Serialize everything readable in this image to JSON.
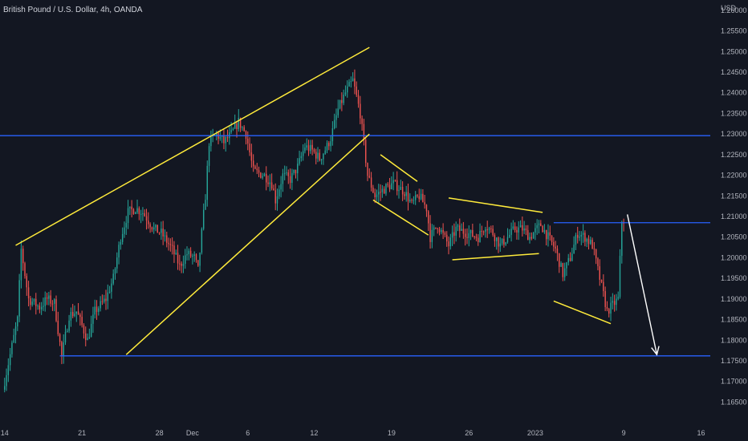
{
  "chart_data": {
    "type": "candlestick",
    "title": "British Pound / U.S. Dollar, 4h, OANDA",
    "currency": "USD",
    "colors": {
      "background": "#131722",
      "up": "#26a69a",
      "down": "#ef5350",
      "horizontal_lines": "#2962ff",
      "trendlines": "#ffeb3b",
      "arrow": "#ffffff",
      "tick_text": "#b2b5be"
    },
    "ylim": [
      1.161,
      1.2625
    ],
    "xlim": [
      "2022-11-13T14:00",
      "2023-01-16T20:00"
    ],
    "y_ticks": [
      "1.26000",
      "1.25500",
      "1.25000",
      "1.24500",
      "1.24000",
      "1.23500",
      "1.23000",
      "1.22500",
      "1.22000",
      "1.21500",
      "1.21000",
      "1.20500",
      "1.20000",
      "1.19500",
      "1.19000",
      "1.18500",
      "1.18000",
      "1.17500",
      "1.17000",
      "1.16500"
    ],
    "x_ticks": [
      {
        "label": "14",
        "date": "2022-11-14"
      },
      {
        "label": "21",
        "date": "2022-11-21"
      },
      {
        "label": "28",
        "date": "2022-11-28"
      },
      {
        "label": "Dec",
        "date": "2022-12-01"
      },
      {
        "label": "6",
        "date": "2022-12-06"
      },
      {
        "label": "12",
        "date": "2022-12-12"
      },
      {
        "label": "19",
        "date": "2022-12-19"
      },
      {
        "label": "26",
        "date": "2022-12-26"
      },
      {
        "label": "2023",
        "date": "2023-01-01"
      },
      {
        "label": "9",
        "date": "2023-01-09"
      },
      {
        "label": "16",
        "date": "2023-01-16"
      }
    ],
    "price_path": [
      [
        "2022-11-14T00:00",
        1.168
      ],
      [
        "2022-11-15T08:00",
        1.185
      ],
      [
        "2022-11-15T16:00",
        1.202
      ],
      [
        "2022-11-16T08:00",
        1.19
      ],
      [
        "2022-11-17T08:00",
        1.188
      ],
      [
        "2022-11-18T00:00",
        1.19
      ],
      [
        "2022-11-18T16:00",
        1.189
      ],
      [
        "2022-11-19T08:00",
        1.176
      ],
      [
        "2022-11-20T00:00",
        1.186
      ],
      [
        "2022-11-20T16:00",
        1.187
      ],
      [
        "2022-11-21T16:00",
        1.18
      ],
      [
        "2022-11-22T08:00",
        1.187
      ],
      [
        "2022-11-23T08:00",
        1.19
      ],
      [
        "2022-11-24T00:00",
        1.195
      ],
      [
        "2022-11-24T16:00",
        1.205
      ],
      [
        "2022-11-25T08:00",
        1.211
      ],
      [
        "2022-11-26T00:00",
        1.212
      ],
      [
        "2022-11-26T16:00",
        1.211
      ],
      [
        "2022-11-27T16:00",
        1.207
      ],
      [
        "2022-11-28T08:00",
        1.206
      ],
      [
        "2022-11-29T08:00",
        1.202
      ],
      [
        "2022-11-30T00:00",
        1.198
      ],
      [
        "2022-11-30T16:00",
        1.201
      ],
      [
        "2022-12-01T08:00",
        1.2
      ],
      [
        "2022-12-01T16:00",
        1.197
      ],
      [
        "2022-12-02T08:00",
        1.215
      ],
      [
        "2022-12-02T16:00",
        1.228
      ],
      [
        "2022-12-03T08:00",
        1.23
      ],
      [
        "2022-12-04T00:00",
        1.228
      ],
      [
        "2022-12-04T16:00",
        1.23
      ],
      [
        "2022-12-05T08:00",
        1.233
      ],
      [
        "2022-12-06T00:00",
        1.23
      ],
      [
        "2022-12-06T16:00",
        1.221
      ],
      [
        "2022-12-07T16:00",
        1.22
      ],
      [
        "2022-12-08T08:00",
        1.218
      ],
      [
        "2022-12-08T16:00",
        1.214
      ],
      [
        "2022-12-09T08:00",
        1.22
      ],
      [
        "2022-12-10T00:00",
        1.219
      ],
      [
        "2022-12-10T16:00",
        1.222
      ],
      [
        "2022-12-11T08:00",
        1.227
      ],
      [
        "2022-12-12T00:00",
        1.226
      ],
      [
        "2022-12-12T16:00",
        1.224
      ],
      [
        "2022-12-13T08:00",
        1.227
      ],
      [
        "2022-12-13T16:00",
        1.229
      ],
      [
        "2022-12-14T08:00",
        1.236
      ],
      [
        "2022-12-15T00:00",
        1.24
      ],
      [
        "2022-12-15T16:00",
        1.243
      ],
      [
        "2022-12-16T08:00",
        1.235
      ],
      [
        "2022-12-17T00:00",
        1.22
      ],
      [
        "2022-12-17T16:00",
        1.215
      ],
      [
        "2022-12-18T16:00",
        1.217
      ],
      [
        "2022-12-19T08:00",
        1.218
      ],
      [
        "2022-12-20T08:00",
        1.216
      ],
      [
        "2022-12-21T00:00",
        1.213
      ],
      [
        "2022-12-21T16:00",
        1.215
      ],
      [
        "2022-12-22T08:00",
        1.212
      ],
      [
        "2022-12-22T16:00",
        1.205
      ],
      [
        "2022-12-23T08:00",
        1.208
      ],
      [
        "2022-12-24T08:00",
        1.203
      ],
      [
        "2022-12-25T00:00",
        1.207
      ],
      [
        "2022-12-26T00:00",
        1.206
      ],
      [
        "2022-12-27T00:00",
        1.205
      ],
      [
        "2022-12-27T16:00",
        1.208
      ],
      [
        "2022-12-28T08:00",
        1.206
      ],
      [
        "2022-12-29T00:00",
        1.203
      ],
      [
        "2022-12-29T16:00",
        1.205
      ],
      [
        "2022-12-30T08:00",
        1.207
      ],
      [
        "2022-12-31T00:00",
        1.207
      ],
      [
        "2022-12-31T16:00",
        1.205
      ],
      [
        "2023-01-01T16:00",
        1.208
      ],
      [
        "2023-01-02T08:00",
        1.205
      ],
      [
        "2023-01-03T00:00",
        1.202
      ],
      [
        "2023-01-03T16:00",
        1.196
      ],
      [
        "2023-01-04T08:00",
        1.2
      ],
      [
        "2023-01-05T00:00",
        1.206
      ],
      [
        "2023-01-05T16:00",
        1.205
      ],
      [
        "2023-01-06T08:00",
        1.203
      ],
      [
        "2023-01-07T00:00",
        1.195
      ],
      [
        "2023-01-07T16:00",
        1.187
      ],
      [
        "2023-01-08T08:00",
        1.189
      ],
      [
        "2023-01-08T16:00",
        1.19
      ],
      [
        "2023-01-09T00:00",
        1.209
      ]
    ],
    "horizontal_lines": [
      {
        "price": 1.2296,
        "from": "2022-11-13T14:00",
        "to": "2023-01-16T20:00"
      },
      {
        "price": 1.2085,
        "from": "2023-01-02T16:00",
        "to": "2023-01-16T20:00"
      },
      {
        "price": 1.1762,
        "from": "2022-11-19T00:00",
        "to": "2023-01-16T20:00"
      }
    ],
    "trendlines": [
      {
        "from": [
          "2022-11-15T00:00",
          1.203
        ],
        "to": [
          "2022-12-17T00:00",
          1.251
        ]
      },
      {
        "from": [
          "2022-11-25T00:00",
          1.1765
        ],
        "to": [
          "2022-12-17T00:00",
          1.23
        ]
      },
      {
        "from": [
          "2022-12-18T00:00",
          1.225
        ],
        "to": [
          "2022-12-21T08:00",
          1.2185
        ]
      },
      {
        "from": [
          "2022-12-17T08:00",
          1.214
        ],
        "to": [
          "2022-12-22T08:00",
          1.2055
        ]
      },
      {
        "from": [
          "2022-12-24T04:00",
          1.2145
        ],
        "to": [
          "2023-01-01T16:00",
          1.211
        ]
      },
      {
        "from": [
          "2022-12-24T12:00",
          1.1995
        ],
        "to": [
          "2023-01-01T08:00",
          1.201
        ]
      },
      {
        "from": [
          "2023-01-02T16:00",
          1.1895
        ],
        "to": [
          "2023-01-07T20:00",
          1.184
        ]
      }
    ],
    "arrow": {
      "from": [
        "2023-01-09T08:00",
        1.2105
      ],
      "to": [
        "2023-01-12T00:00",
        1.1765
      ]
    }
  }
}
